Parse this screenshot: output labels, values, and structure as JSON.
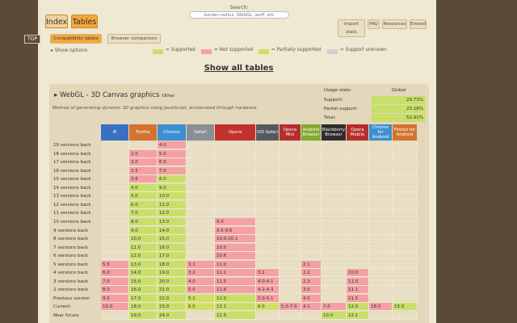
{
  "nav": {
    "tab_index": "Index",
    "tab_tables": "Tables",
    "search_label": "Search:",
    "search_placeholder": "border-radius, WebGL, woff, etc"
  },
  "top_buttons": [
    {
      "label": "Import stats"
    },
    {
      "label": "FAQ"
    },
    {
      "label": "Resources"
    },
    {
      "label": "Embed"
    }
  ],
  "top_link": "TOP",
  "subtabs": {
    "compat": "Compatibility tables",
    "browser": "Browser comparison"
  },
  "show_options": "▸ Show options",
  "legend": [
    {
      "label": "= Supported",
      "color": "#c8e06a"
    },
    {
      "label": "= Not supported",
      "color": "#f5a0a5"
    },
    {
      "label": "= Partially supported",
      "color": "#d0e066"
    },
    {
      "label": "= Support unknown",
      "color": "#d0d0d0"
    }
  ],
  "show_all": "Show all tables",
  "feature": {
    "title": "▸ WebGL - 3D Canvas graphics",
    "status": "- Other",
    "description": "Method of generating dynamic 3D graphics using JavaScript, accelerated through hardware",
    "usage_title": "Usage stats:",
    "usage_global": "Global",
    "usage": [
      {
        "label": "Support:",
        "value": "29.73%"
      },
      {
        "label": "Partial support:",
        "value": "23.18%"
      },
      {
        "label": "Total:",
        "value": "52.91%"
      }
    ]
  },
  "colors": {
    "supported": "#c8e06a",
    "not_supported": "#f5a0a5",
    "partial": "#d0e066",
    "unknown": "#d0d0d0",
    "empty": "#e8dfc4",
    "label_bg": "#e3d8bb"
  },
  "browsers": [
    {
      "name": "IE",
      "color": "#3a6fc4"
    },
    {
      "name": "Firefox",
      "color": "#d4732e"
    },
    {
      "name": "Chrome",
      "color": "#3c8fd0"
    },
    {
      "name": "Safari",
      "color": "#8a8f96"
    },
    {
      "name": "Opera",
      "color": "#c23030"
    },
    {
      "name": "iOS Safari",
      "color": "#555a60"
    },
    {
      "name": "Opera Mini",
      "color": "#b52e2e"
    },
    {
      "name": "Android Browser",
      "color": "#84a830"
    },
    {
      "name": "Blackberry Browser",
      "color": "#2d2d2d"
    },
    {
      "name": "Opera Mobile",
      "color": "#b52e2e"
    },
    {
      "name": "Chrome for Android",
      "color": "#3c8fd0"
    },
    {
      "name": "Firefox for Android",
      "color": "#d4732e"
    }
  ],
  "rows": [
    {
      "label": "19 versions back",
      "cells": [
        [
          "",
          ""
        ],
        [
          "",
          ""
        ],
        [
          "4.0",
          "n"
        ],
        [
          "",
          ""
        ],
        [
          "",
          ""
        ],
        [
          "",
          ""
        ],
        [
          "",
          ""
        ],
        [
          "",
          ""
        ],
        [
          "",
          ""
        ],
        [
          "",
          ""
        ],
        [
          "",
          ""
        ],
        [
          "",
          ""
        ]
      ]
    },
    {
      "label": "18 versions back",
      "cells": [
        [
          "",
          ""
        ],
        [
          "2.0",
          "n"
        ],
        [
          "5.0",
          "n"
        ],
        [
          "",
          ""
        ],
        [
          "",
          ""
        ],
        [
          "",
          ""
        ],
        [
          "",
          ""
        ],
        [
          "",
          ""
        ],
        [
          "",
          ""
        ],
        [
          "",
          ""
        ],
        [
          "",
          ""
        ],
        [
          "",
          ""
        ]
      ]
    },
    {
      "label": "17 versions back",
      "cells": [
        [
          "",
          ""
        ],
        [
          "3.0",
          "n"
        ],
        [
          "6.0",
          "n"
        ],
        [
          "",
          ""
        ],
        [
          "",
          ""
        ],
        [
          "",
          ""
        ],
        [
          "",
          ""
        ],
        [
          "",
          ""
        ],
        [
          "",
          ""
        ],
        [
          "",
          ""
        ],
        [
          "",
          ""
        ],
        [
          "",
          ""
        ]
      ]
    },
    {
      "label": "16 versions back",
      "cells": [
        [
          "",
          ""
        ],
        [
          "3.5",
          "n"
        ],
        [
          "7.0",
          "n"
        ],
        [
          "",
          ""
        ],
        [
          "",
          ""
        ],
        [
          "",
          ""
        ],
        [
          "",
          ""
        ],
        [
          "",
          ""
        ],
        [
          "",
          ""
        ],
        [
          "",
          ""
        ],
        [
          "",
          ""
        ],
        [
          "",
          ""
        ]
      ]
    },
    {
      "label": "15 versions back",
      "cells": [
        [
          "",
          ""
        ],
        [
          "3.6",
          "n"
        ],
        [
          "8.0",
          "y"
        ],
        [
          "",
          ""
        ],
        [
          "",
          ""
        ],
        [
          "",
          ""
        ],
        [
          "",
          ""
        ],
        [
          "",
          ""
        ],
        [
          "",
          ""
        ],
        [
          "",
          ""
        ],
        [
          "",
          ""
        ],
        [
          "",
          ""
        ]
      ]
    },
    {
      "label": "14 versions back",
      "cells": [
        [
          "",
          ""
        ],
        [
          "4.0",
          "y"
        ],
        [
          "9.0",
          "y"
        ],
        [
          "",
          ""
        ],
        [
          "",
          ""
        ],
        [
          "",
          ""
        ],
        [
          "",
          ""
        ],
        [
          "",
          ""
        ],
        [
          "",
          ""
        ],
        [
          "",
          ""
        ],
        [
          "",
          ""
        ],
        [
          "",
          ""
        ]
      ]
    },
    {
      "label": "13 versions back",
      "cells": [
        [
          "",
          ""
        ],
        [
          "5.0",
          "y"
        ],
        [
          "10.0",
          "y"
        ],
        [
          "",
          ""
        ],
        [
          "",
          ""
        ],
        [
          "",
          ""
        ],
        [
          "",
          ""
        ],
        [
          "",
          ""
        ],
        [
          "",
          ""
        ],
        [
          "",
          ""
        ],
        [
          "",
          ""
        ],
        [
          "",
          ""
        ]
      ]
    },
    {
      "label": "12 versions back",
      "cells": [
        [
          "",
          ""
        ],
        [
          "6.0",
          "y"
        ],
        [
          "11.0",
          "y"
        ],
        [
          "",
          ""
        ],
        [
          "",
          ""
        ],
        [
          "",
          ""
        ],
        [
          "",
          ""
        ],
        [
          "",
          ""
        ],
        [
          "",
          ""
        ],
        [
          "",
          ""
        ],
        [
          "",
          ""
        ],
        [
          "",
          ""
        ]
      ]
    },
    {
      "label": "11 versions back",
      "cells": [
        [
          "",
          ""
        ],
        [
          "7.0",
          "y"
        ],
        [
          "12.0",
          "y"
        ],
        [
          "",
          ""
        ],
        [
          "",
          ""
        ],
        [
          "",
          ""
        ],
        [
          "",
          ""
        ],
        [
          "",
          ""
        ],
        [
          "",
          ""
        ],
        [
          "",
          ""
        ],
        [
          "",
          ""
        ],
        [
          "",
          ""
        ]
      ]
    },
    {
      "label": "10 versions back",
      "cells": [
        [
          "",
          ""
        ],
        [
          "8.0",
          "y"
        ],
        [
          "13.0",
          "y"
        ],
        [
          "",
          ""
        ],
        [
          "9.0",
          "n"
        ],
        [
          "",
          ""
        ],
        [
          "",
          ""
        ],
        [
          "",
          ""
        ],
        [
          "",
          ""
        ],
        [
          "",
          ""
        ],
        [
          "",
          ""
        ],
        [
          "",
          ""
        ]
      ]
    },
    {
      "label": "9 versions back",
      "cells": [
        [
          "",
          ""
        ],
        [
          "9.0",
          "y"
        ],
        [
          "14.0",
          "y"
        ],
        [
          "",
          ""
        ],
        [
          "9.5-9.6",
          "n"
        ],
        [
          "",
          ""
        ],
        [
          "",
          ""
        ],
        [
          "",
          ""
        ],
        [
          "",
          ""
        ],
        [
          "",
          ""
        ],
        [
          "",
          ""
        ],
        [
          "",
          ""
        ]
      ]
    },
    {
      "label": "8 versions back",
      "cells": [
        [
          "",
          ""
        ],
        [
          "10.0",
          "y"
        ],
        [
          "15.0",
          "y"
        ],
        [
          "",
          ""
        ],
        [
          "10.0-10.1",
          "n"
        ],
        [
          "",
          ""
        ],
        [
          "",
          ""
        ],
        [
          "",
          ""
        ],
        [
          "",
          ""
        ],
        [
          "",
          ""
        ],
        [
          "",
          ""
        ],
        [
          "",
          ""
        ]
      ]
    },
    {
      "label": "7 versions back",
      "cells": [
        [
          "",
          ""
        ],
        [
          "11.0",
          "y"
        ],
        [
          "16.0",
          "y"
        ],
        [
          "",
          ""
        ],
        [
          "10.5",
          "n"
        ],
        [
          "",
          ""
        ],
        [
          "",
          ""
        ],
        [
          "",
          ""
        ],
        [
          "",
          ""
        ],
        [
          "",
          ""
        ],
        [
          "",
          ""
        ],
        [
          "",
          ""
        ]
      ]
    },
    {
      "label": "6 versions back",
      "cells": [
        [
          "",
          ""
        ],
        [
          "12.0",
          "y"
        ],
        [
          "17.0",
          "y"
        ],
        [
          "",
          ""
        ],
        [
          "10.6",
          "n"
        ],
        [
          "",
          ""
        ],
        [
          "",
          ""
        ],
        [
          "",
          ""
        ],
        [
          "",
          ""
        ],
        [
          "",
          ""
        ],
        [
          "",
          ""
        ],
        [
          "",
          ""
        ]
      ]
    },
    {
      "label": "5 versions back",
      "cells": [
        [
          "5.5",
          "n"
        ],
        [
          "13.0",
          "y"
        ],
        [
          "18.0",
          "y"
        ],
        [
          "3.1",
          "n"
        ],
        [
          "11.0",
          "n"
        ],
        [
          "",
          ""
        ],
        [
          "",
          ""
        ],
        [
          "2.1",
          "n"
        ],
        [
          "",
          ""
        ],
        [
          "",
          ""
        ],
        [
          "",
          ""
        ],
        [
          "",
          ""
        ]
      ]
    },
    {
      "label": "4 versions back",
      "cells": [
        [
          "6.0",
          "n"
        ],
        [
          "14.0",
          "y"
        ],
        [
          "19.0",
          "y"
        ],
        [
          "3.2",
          "n"
        ],
        [
          "11.1",
          "n"
        ],
        [
          "3.2",
          "n"
        ],
        [
          "",
          ""
        ],
        [
          "2.2",
          "n"
        ],
        [
          "",
          ""
        ],
        [
          "10.0",
          "n"
        ],
        [
          "",
          ""
        ],
        [
          "",
          ""
        ]
      ]
    },
    {
      "label": "3 versions back",
      "cells": [
        [
          "7.0",
          "n"
        ],
        [
          "15.0",
          "y"
        ],
        [
          "20.0",
          "y"
        ],
        [
          "4.0",
          "n"
        ],
        [
          "11.5",
          "n"
        ],
        [
          "4.0-4.1",
          "n"
        ],
        [
          "",
          ""
        ],
        [
          "2.3",
          "n"
        ],
        [
          "",
          ""
        ],
        [
          "11.0",
          "n"
        ],
        [
          "",
          ""
        ],
        [
          "",
          ""
        ]
      ]
    },
    {
      "label": "2 versions back",
      "cells": [
        [
          "8.0",
          "n"
        ],
        [
          "16.0",
          "y"
        ],
        [
          "21.0",
          "y"
        ],
        [
          "5.0",
          "n"
        ],
        [
          "11.6",
          "n"
        ],
        [
          "4.2-4.3",
          "n"
        ],
        [
          "",
          ""
        ],
        [
          "3.0",
          "n"
        ],
        [
          "",
          ""
        ],
        [
          "11.1",
          "n"
        ],
        [
          "",
          ""
        ],
        [
          "",
          ""
        ]
      ]
    },
    {
      "label": "Previous version",
      "cells": [
        [
          "9.0",
          "n"
        ],
        [
          "17.0",
          "y"
        ],
        [
          "22.0",
          "y"
        ],
        [
          "5.1",
          "p"
        ],
        [
          "12.0",
          "y"
        ],
        [
          "5.0-5.1",
          "n"
        ],
        [
          "",
          ""
        ],
        [
          "4.0",
          "n"
        ],
        [
          "",
          ""
        ],
        [
          "11.5",
          "n"
        ],
        [
          "",
          ""
        ],
        [
          "",
          ""
        ]
      ]
    },
    {
      "label": "Current",
      "cells": [
        [
          "10.0",
          "n"
        ],
        [
          "18.0",
          "y"
        ],
        [
          "23.0",
          "y"
        ],
        [
          "6.0",
          "p"
        ],
        [
          "12.1",
          "y"
        ],
        [
          "6.0",
          "p"
        ],
        [
          "5.0-7.0",
          "n"
        ],
        [
          "4.1",
          "n"
        ],
        [
          "7.0",
          "n"
        ],
        [
          "12.0",
          "y"
        ],
        [
          "18.0",
          "n"
        ],
        [
          "15.0",
          "y"
        ]
      ]
    },
    {
      "label": "Near future",
      "cells": [
        [
          "",
          ""
        ],
        [
          "19.0",
          "y"
        ],
        [
          "24.0",
          "y"
        ],
        [
          "",
          ""
        ],
        [
          "12.5",
          "y"
        ],
        [
          "",
          ""
        ],
        [
          "",
          ""
        ],
        [
          "",
          ""
        ],
        [
          "10.0",
          "y"
        ],
        [
          "12.1",
          "y"
        ],
        [
          "",
          ""
        ],
        [
          "",
          ""
        ]
      ]
    }
  ]
}
